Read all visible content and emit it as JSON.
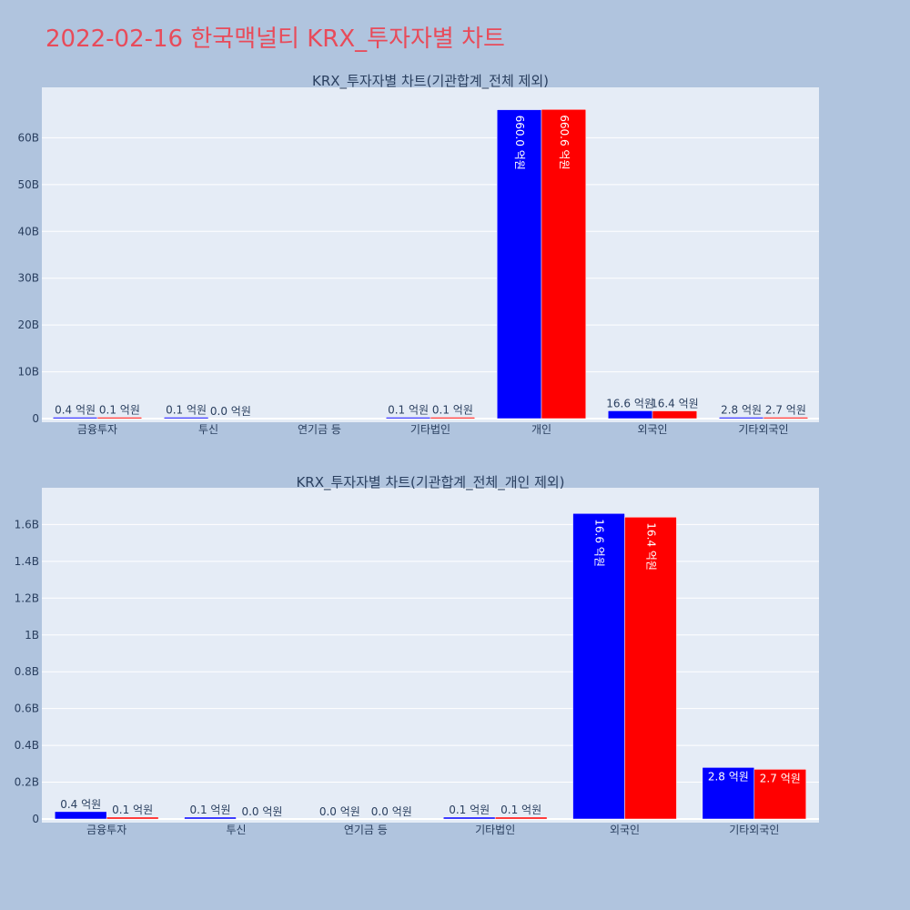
{
  "page_title": "2022-02-16 한국맥널티 KRX_투자자별 차트",
  "colors": {
    "background": "#b0c4de",
    "plot_bg": "#e5ecf6",
    "title": "#e84b5a",
    "series_a": "#0000ff",
    "series_b": "#ff0000"
  },
  "chart_data": [
    {
      "type": "bar",
      "title": "KRX_투자자별 차트(기관합계_전체 제외)",
      "categories": [
        "금융투자",
        "투신",
        "연기금 등",
        "기타법인",
        "개인",
        "외국인",
        "기타외국인"
      ],
      "series": [
        {
          "color": "#0000ff",
          "values": [
            0.04,
            0.01,
            0,
            0.01,
            66.0,
            1.66,
            0.28
          ],
          "labels": [
            "0.4 억원",
            "0.1 억원",
            "",
            "0.1 억원",
            "660.0 억원",
            "16.6 억원",
            "2.8 억원"
          ]
        },
        {
          "color": "#ff0000",
          "values": [
            0.01,
            0.0,
            0,
            0.01,
            66.06,
            1.64,
            0.27
          ],
          "labels": [
            "0.1 억원",
            "0.0 억원",
            "",
            "0.1 억원",
            "660.6 억원",
            "16.4 억원",
            "2.7 억원"
          ]
        }
      ],
      "y_ticks": [
        0,
        10,
        20,
        30,
        40,
        50,
        60
      ],
      "y_tick_labels": [
        "0",
        "10B",
        "20B",
        "30B",
        "40B",
        "50B",
        "60B"
      ],
      "ylim": [
        0,
        70
      ],
      "grid": true
    },
    {
      "type": "bar",
      "title": "KRX_투자자별 차트(기관합계_전체_개인 제외)",
      "categories": [
        "금융투자",
        "투신",
        "연기금 등",
        "기타법인",
        "외국인",
        "기타외국인"
      ],
      "series": [
        {
          "color": "#0000ff",
          "values": [
            0.04,
            0.01,
            0,
            0.01,
            1.66,
            0.28
          ],
          "labels": [
            "0.4 억원",
            "0.1 억원",
            "0.0 억원",
            "0.1 억원",
            "16.6 억원",
            "2.8 억원"
          ]
        },
        {
          "color": "#ff0000",
          "values": [
            0.01,
            0.0,
            0,
            0.01,
            1.64,
            0.27
          ],
          "labels": [
            "0.1 억원",
            "0.0 억원",
            "0.0 억원",
            "0.1 억원",
            "16.4 억원",
            "2.7 억원"
          ]
        }
      ],
      "y_ticks": [
        0,
        0.2,
        0.4,
        0.6,
        0.8,
        1.0,
        1.2,
        1.4,
        1.6
      ],
      "y_tick_labels": [
        "0",
        "0.2B",
        "0.4B",
        "0.6B",
        "0.8B",
        "1B",
        "1.2B",
        "1.4B",
        "1.6B"
      ],
      "ylim": [
        0,
        1.78
      ],
      "grid": true
    }
  ]
}
